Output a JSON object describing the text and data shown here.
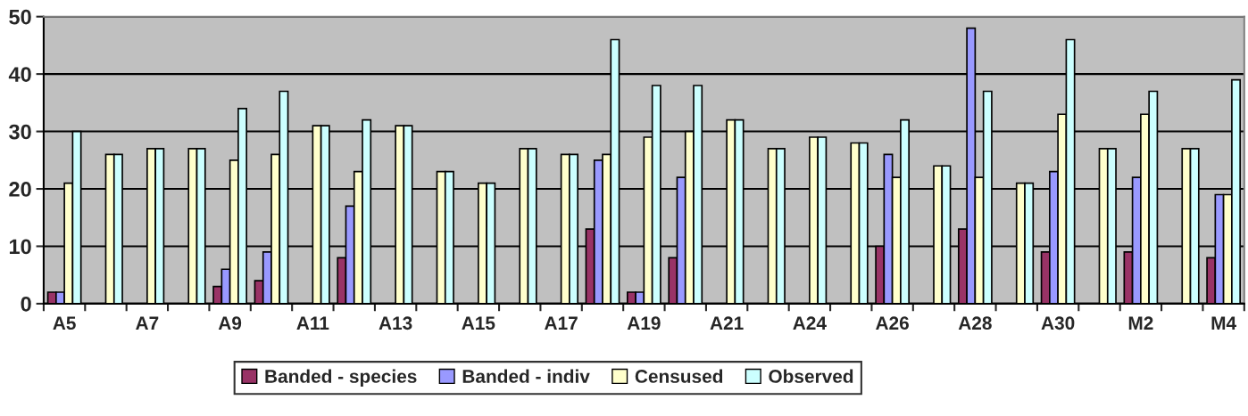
{
  "chart_data": {
    "type": "bar",
    "categories": [
      "A5",
      null,
      "A7",
      null,
      "A9",
      null,
      "A11",
      null,
      "A13",
      null,
      "A15",
      null,
      "A17",
      null,
      "A19",
      null,
      "A21",
      null,
      "A24",
      null,
      "A26",
      null,
      "A28",
      null,
      "A30",
      null,
      "M2",
      null,
      "M4"
    ],
    "series": [
      {
        "name": "Banded - species",
        "color": "#993366",
        "values": [
          2,
          null,
          null,
          null,
          3,
          4,
          null,
          8,
          null,
          null,
          null,
          null,
          null,
          13,
          2,
          8,
          null,
          null,
          null,
          null,
          10,
          null,
          13,
          null,
          9,
          null,
          9,
          null,
          8
        ]
      },
      {
        "name": "Banded - indiv",
        "color": "#9999ff",
        "values": [
          2,
          null,
          null,
          null,
          6,
          9,
          null,
          17,
          null,
          null,
          null,
          null,
          null,
          25,
          2,
          22,
          null,
          null,
          null,
          null,
          26,
          null,
          48,
          null,
          23,
          null,
          22,
          null,
          19
        ]
      },
      {
        "name": "Censused",
        "color": "#ffffcc",
        "values": [
          21,
          26,
          27,
          27,
          25,
          26,
          31,
          23,
          31,
          23,
          21,
          27,
          26,
          26,
          29,
          30,
          32,
          27,
          29,
          28,
          22,
          24,
          22,
          21,
          33,
          27,
          33,
          27,
          19
        ]
      },
      {
        "name": "Observed",
        "color": "#ccffff",
        "values": [
          30,
          26,
          27,
          27,
          34,
          37,
          31,
          32,
          31,
          23,
          21,
          27,
          26,
          46,
          38,
          38,
          32,
          27,
          29,
          28,
          32,
          24,
          37,
          21,
          46,
          27,
          37,
          27,
          39
        ]
      }
    ],
    "ylim": [
      0,
      50
    ],
    "yticks": [
      0,
      10,
      20,
      30,
      40,
      50
    ],
    "grid": "y",
    "legend": "bottom"
  }
}
